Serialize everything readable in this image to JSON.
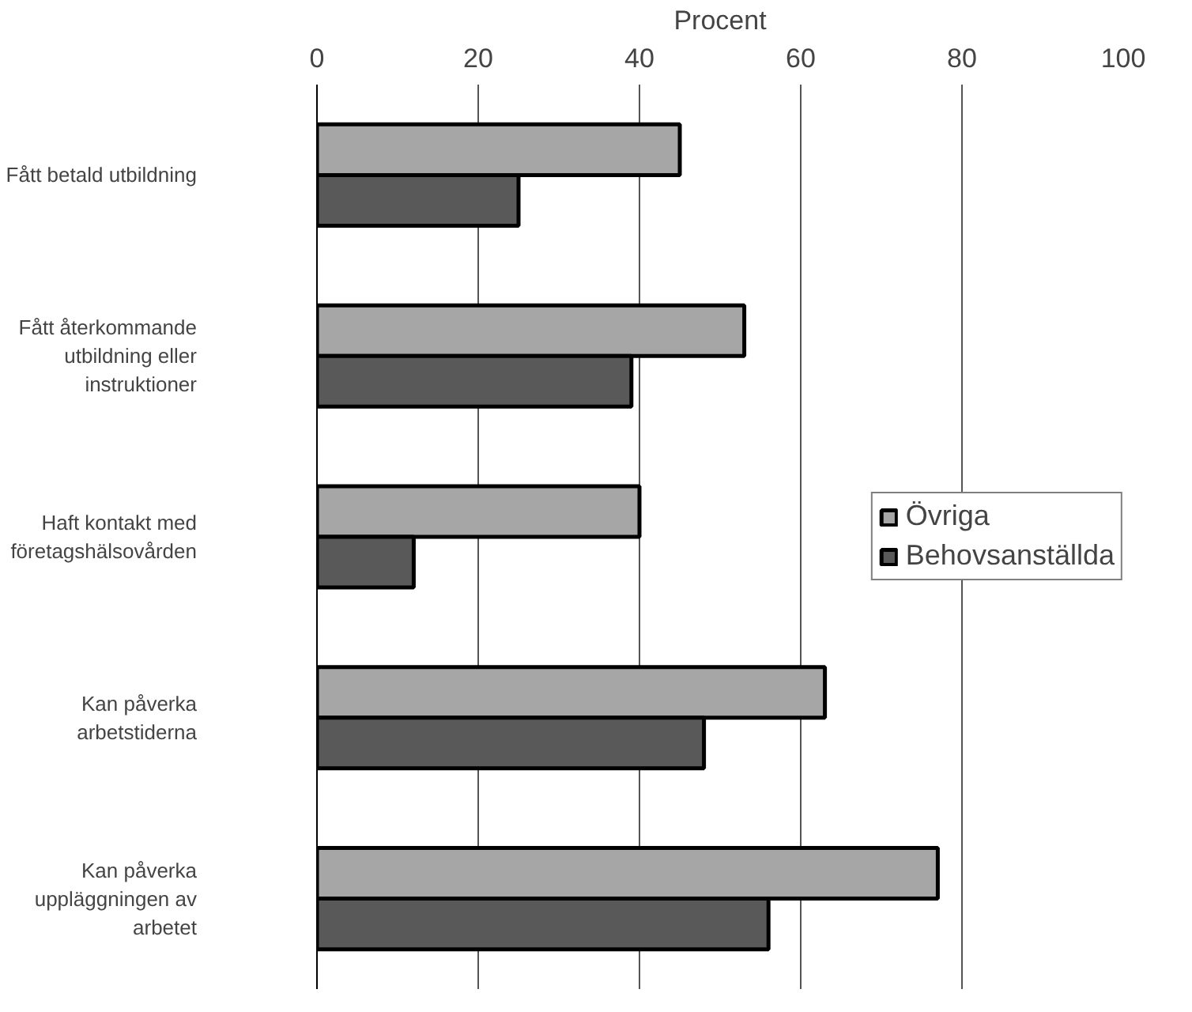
{
  "chart_data": {
    "type": "bar",
    "orientation": "horizontal",
    "xlabel": "Procent",
    "categories": [
      "Fått betald utbildning",
      "Fått återkommande utbildning eller instruktioner",
      "Haft kontakt med företagshälsovården",
      "Kan påverka arbetstiderna",
      "Kan påverka uppläggningen av arbetet"
    ],
    "series": [
      {
        "name": "Övriga",
        "color": "#a6a6a6",
        "values": [
          45,
          53,
          40,
          63,
          77
        ]
      },
      {
        "name": "Behovsanställda",
        "color": "#595959",
        "values": [
          25,
          39,
          12,
          48,
          56
        ]
      }
    ],
    "xlim": [
      0,
      100
    ],
    "xticks": [
      0,
      20,
      40,
      60,
      80,
      100
    ],
    "grid": "x",
    "legend": "right"
  }
}
